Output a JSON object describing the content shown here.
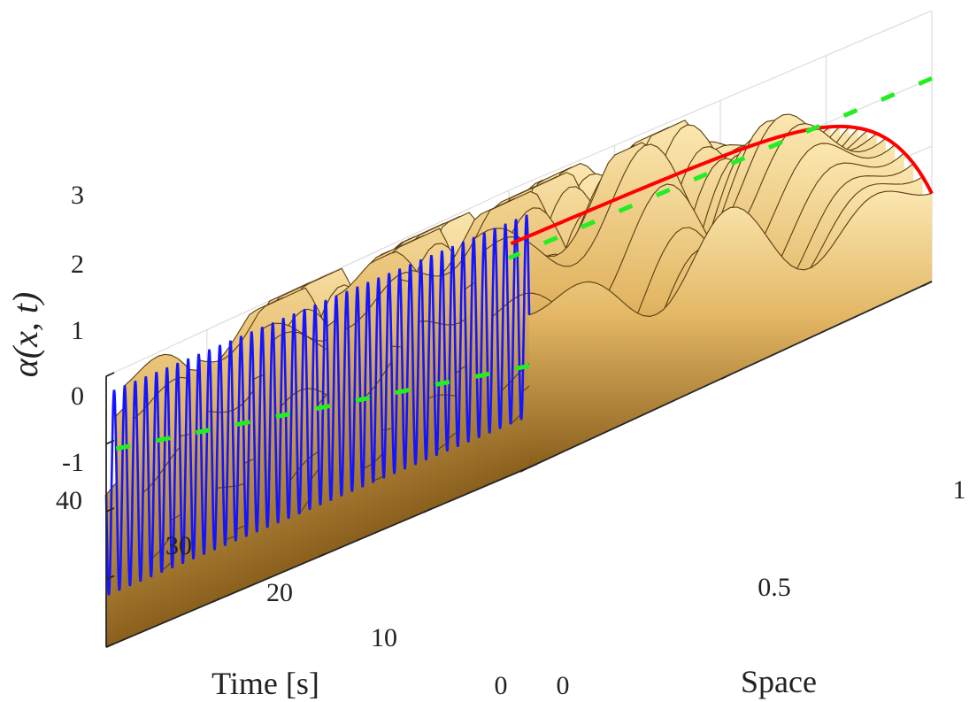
{
  "chart_data": {
    "type": "surface",
    "zlabel": "α(x, t)",
    "xlabel": "Space",
    "ylabel": "Time [s]",
    "xlim": [
      0,
      1
    ],
    "ylim": [
      0,
      40
    ],
    "zlim": [
      -1,
      3
    ],
    "x_ticks": [
      "0",
      "0.5",
      "1"
    ],
    "y_ticks": [
      "0",
      "10",
      "20",
      "30",
      "40"
    ],
    "z_ticks": [
      "-1",
      "0",
      "1",
      "2",
      "3"
    ],
    "surface_color": "#e3b765",
    "surface_shadow": "#8a5f1c",
    "boundary_x0_color": "#1515ff",
    "boundary_x1_color": "#ff0000",
    "reference_color": "#22ee22",
    "boundary_x0": {
      "center": 1.25,
      "amplitude": 1.5,
      "oscillations_per_second": 1.0
    },
    "boundary_x1": {
      "start": 0.3,
      "end": 2.2
    },
    "reference_line": {
      "x0_t0": 0.5,
      "x0_t40": 1.9,
      "x1": 2.0
    },
    "grid": true
  }
}
